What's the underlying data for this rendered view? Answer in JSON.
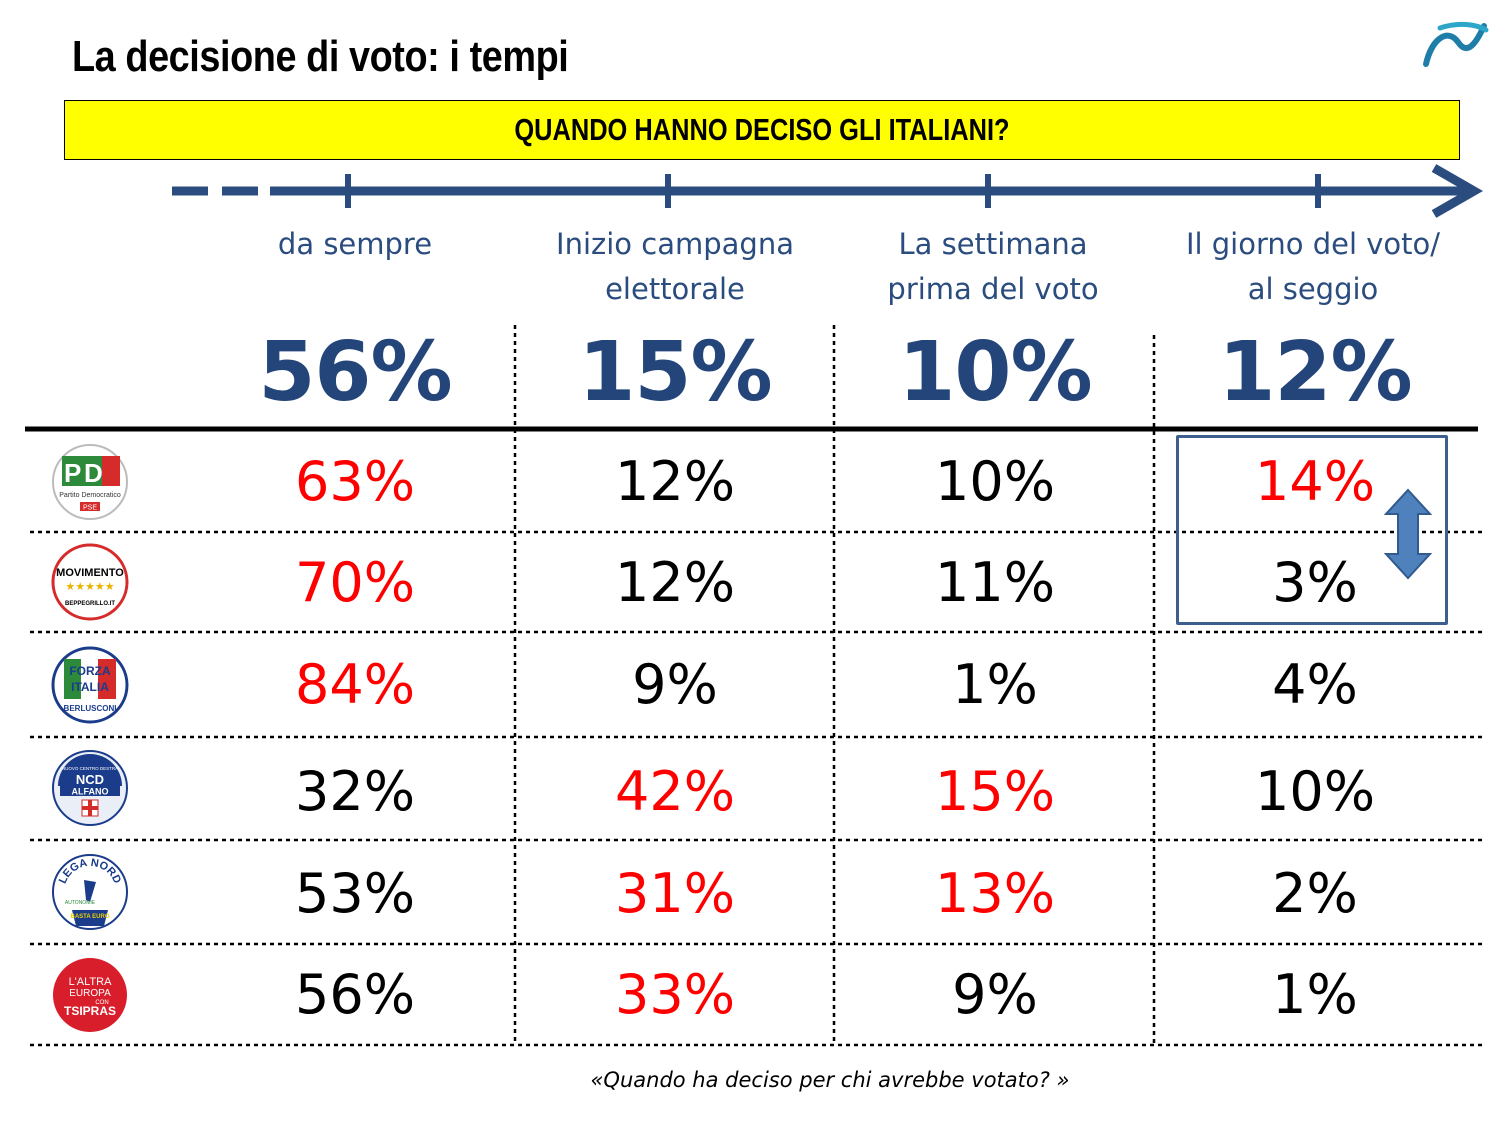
{
  "title": "La decisione di voto: i tempi",
  "banner": "QUANDO HANNO DECISO GLI ITALIANI?",
  "phases": [
    {
      "label": "da sempre",
      "total": "56%"
    },
    {
      "label": "Inizio campagna\nelettorale",
      "total": "15%"
    },
    {
      "label": "La settimana\nprima del voto",
      "total": "10%"
    },
    {
      "label": "Il giorno del voto/\nal seggio",
      "total": "12%"
    }
  ],
  "parties": [
    {
      "logo": "pd-logo",
      "logo_text": [
        "Partito Democratico",
        "PSE"
      ],
      "values": [
        "63%",
        "12%",
        "10%",
        "14%"
      ],
      "highlight": [
        true,
        false,
        false,
        true
      ]
    },
    {
      "logo": "m5s-logo",
      "logo_text": [
        "MOVIMENTO",
        "BEPPEGRILLO.IT"
      ],
      "values": [
        "70%",
        "12%",
        "11%",
        "3%"
      ],
      "highlight": [
        true,
        false,
        false,
        false
      ]
    },
    {
      "logo": "forza-italia-logo",
      "logo_text": [
        "FORZA",
        "ITALIA",
        "BERLUSCONI"
      ],
      "values": [
        "84%",
        "9%",
        "1%",
        "4%"
      ],
      "highlight": [
        true,
        false,
        false,
        false
      ]
    },
    {
      "logo": "ncd-logo",
      "logo_text": [
        "NUOVO CENTRO DESTRA",
        "NCD",
        "ALFANO"
      ],
      "values": [
        "32%",
        "42%",
        "15%",
        "10%"
      ],
      "highlight": [
        false,
        true,
        true,
        false
      ]
    },
    {
      "logo": "lega-nord-logo",
      "logo_text": [
        "LEGA NORD",
        "AUTONOMIE",
        "BASTA EURO"
      ],
      "values": [
        "53%",
        "31%",
        "13%",
        "2%"
      ],
      "highlight": [
        false,
        true,
        true,
        false
      ]
    },
    {
      "logo": "tsipras-logo",
      "logo_text": [
        "L'ALTRA",
        "EUROPA",
        "CON",
        "TSIPRAS"
      ],
      "values": [
        "56%",
        "33%",
        "9%",
        "1%"
      ],
      "highlight": [
        false,
        true,
        false,
        false
      ]
    }
  ],
  "question": "«Quando ha deciso per chi avrebbe votato? »",
  "colors": {
    "accent": "#24457a",
    "highlight": "#ff0000",
    "banner": "#ffff00",
    "text": "#000000"
  }
}
